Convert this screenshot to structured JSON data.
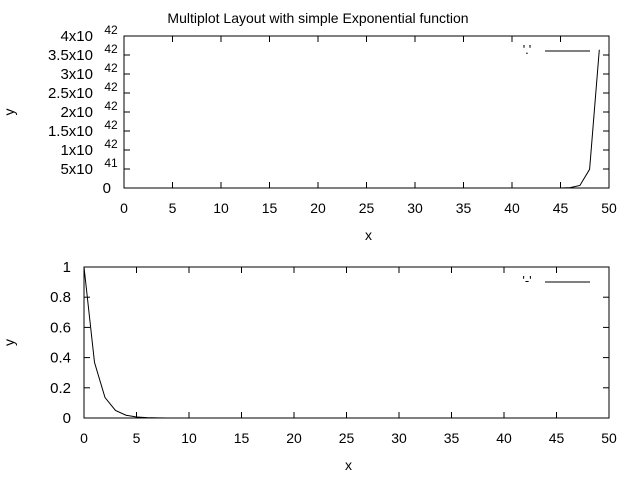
{
  "title": "Multiplot Layout with simple Exponential function",
  "chart_data": [
    {
      "type": "line",
      "xlabel": "x",
      "ylabel": "y",
      "xlim": [
        0,
        50
      ],
      "ylim": [
        0,
        4e+42
      ],
      "xticks": [
        "0",
        "5",
        "10",
        "15",
        "20",
        "25",
        "30",
        "35",
        "40",
        "45",
        "50"
      ],
      "yticks": [
        {
          "mant": "0",
          "exp": ""
        },
        {
          "mant": "5x10",
          "exp": "41"
        },
        {
          "mant": "1x10",
          "exp": "42"
        },
        {
          "mant": "1.5x10",
          "exp": "42"
        },
        {
          "mant": "2x10",
          "exp": "42"
        },
        {
          "mant": "2.5x10",
          "exp": "42"
        },
        {
          "mant": "3x10",
          "exp": "42"
        },
        {
          "mant": "3.5x10",
          "exp": "42"
        },
        {
          "mant": "4x10",
          "exp": "42"
        }
      ],
      "ytick_values": [
        0,
        5e+41,
        1e+42,
        1.5e+42,
        2e+42,
        2.5e+42,
        3e+42,
        3.5e+42,
        4e+42
      ],
      "legend": {
        "label": "'.'",
        "position": "top-right"
      },
      "series": [
        {
          "x": [
            0,
            1,
            2,
            3,
            4,
            5,
            6,
            7,
            8,
            9,
            10,
            11,
            12,
            13,
            14,
            15,
            16,
            17,
            18,
            19,
            20,
            21,
            22,
            23,
            24,
            25,
            26,
            27,
            28,
            29,
            30,
            31,
            32,
            33,
            34,
            35,
            36,
            37,
            38,
            39,
            40,
            41,
            42,
            43,
            44,
            45,
            46,
            47,
            48,
            49
          ],
          "fn": "exp(2x)"
        }
      ],
      "color": "#000000"
    },
    {
      "type": "line",
      "xlabel": "x",
      "ylabel": "y",
      "xlim": [
        0,
        50
      ],
      "ylim": [
        0,
        1
      ],
      "xticks": [
        "0",
        "5",
        "10",
        "15",
        "20",
        "25",
        "30",
        "35",
        "40",
        "45",
        "50"
      ],
      "yticks": [
        {
          "mant": "0",
          "exp": ""
        },
        {
          "mant": "0.2",
          "exp": ""
        },
        {
          "mant": "0.4",
          "exp": ""
        },
        {
          "mant": "0.6",
          "exp": ""
        },
        {
          "mant": "0.8",
          "exp": ""
        },
        {
          "mant": "1",
          "exp": ""
        }
      ],
      "ytick_values": [
        0,
        0.2,
        0.4,
        0.6,
        0.8,
        1
      ],
      "legend": {
        "label": "'-'",
        "position": "top-right"
      },
      "series": [
        {
          "x": [
            0,
            1,
            2,
            3,
            4,
            5,
            6,
            7,
            8,
            9,
            10,
            11,
            12,
            13,
            14,
            15,
            16,
            17,
            18,
            19,
            20,
            21,
            22,
            23,
            24,
            25,
            26,
            27,
            28,
            29,
            30,
            31,
            32,
            33,
            34,
            35,
            36,
            37,
            38,
            39,
            40,
            41,
            42,
            43,
            44,
            45,
            46,
            47,
            48,
            49
          ],
          "fn": "exp(-x)"
        }
      ],
      "color": "#000000"
    }
  ]
}
